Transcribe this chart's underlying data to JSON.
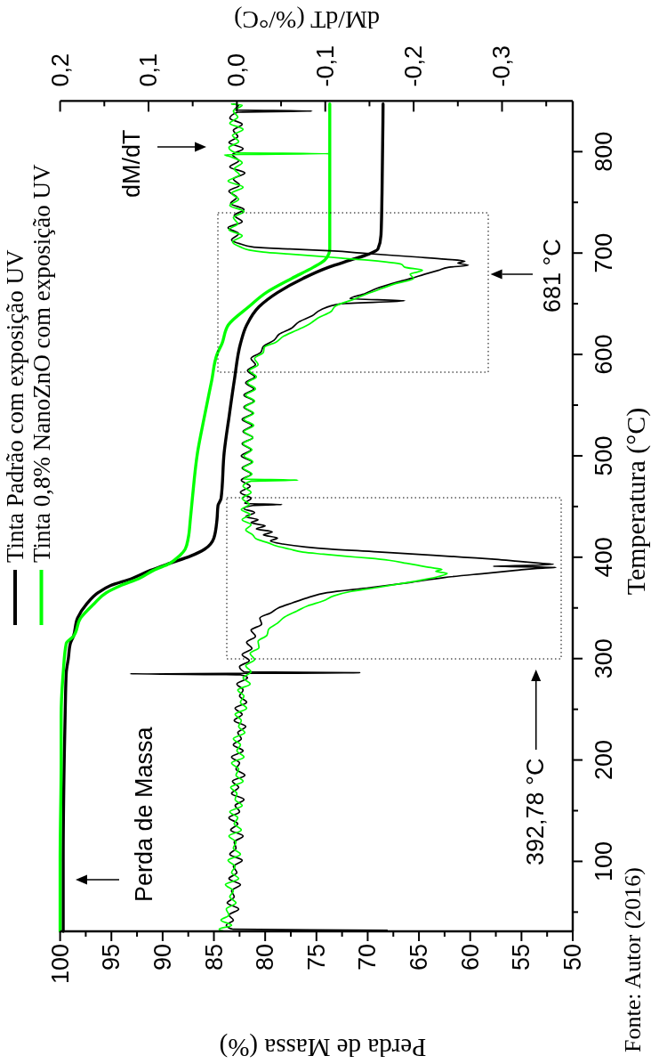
{
  "chart_data": {
    "type": "line",
    "xlabel": "Perda de Massa (%)",
    "x2label": "dM/dT (%/°C)",
    "ylabel": "Temperatura (°C)",
    "annotations": [
      "Perda de Massa",
      "dM/dT",
      "392,78 °C",
      "681 °C",
      "Fonte: Autor (2016)"
    ],
    "xlim": [
      100,
      50
    ],
    "x2lim": [
      0.2,
      -0.38
    ],
    "ylim": [
      31,
      850
    ],
    "xticks": [
      100,
      {
        "value": 97.5,
        "label": null
      },
      95,
      {
        "value": 92.5,
        "label": null
      },
      90,
      {
        "value": 87.5,
        "label": null
      },
      85,
      {
        "value": 82.5,
        "label": null
      },
      80,
      {
        "value": 77.5,
        "label": null
      },
      75,
      {
        "value": 72.5,
        "label": null
      },
      70,
      {
        "value": 67.5,
        "label": null
      },
      65,
      {
        "value": 62.5,
        "label": null
      },
      60,
      {
        "value": 57.5,
        "label": null
      },
      55,
      {
        "value": 52.5,
        "label": null
      },
      50
    ],
    "x2ticks": [
      {
        "value": 0.2,
        "label": "0,2"
      },
      {
        "value": 0.15,
        "label": null
      },
      {
        "value": 0.1,
        "label": "0,1"
      },
      {
        "value": 0.05,
        "label": null
      },
      {
        "value": 0,
        "label": "0,0"
      },
      {
        "value": -0.05,
        "label": null
      },
      {
        "value": -0.1,
        "label": "-0,1"
      },
      {
        "value": -0.15,
        "label": null
      },
      {
        "value": -0.2,
        "label": "-0,2"
      },
      {
        "value": -0.25,
        "label": null
      },
      {
        "value": -0.3,
        "label": "-0,3"
      },
      {
        "value": -0.35,
        "label": null
      }
    ],
    "yticks": [
      {
        "value": 50,
        "label": null
      },
      100,
      {
        "value": 150,
        "label": null
      },
      200,
      {
        "value": 250,
        "label": null
      },
      300,
      {
        "value": 350,
        "label": null
      },
      400,
      {
        "value": 450,
        "label": null
      },
      500,
      {
        "value": 550,
        "label": null
      },
      600,
      {
        "value": 650,
        "label": null
      },
      700,
      {
        "value": 750,
        "label": null
      },
      800
    ],
    "legend": "left",
    "series": [
      {
        "name": "Tinta Padrão com exposição UV",
        "color": "#000000",
        "values": [
          31,
          100,
          200,
          250,
          286,
          300,
          315,
          322,
          340,
          354,
          365,
          372,
          379,
          387,
          394,
          401,
          408,
          419,
          437,
          451,
          458,
          503,
          540,
          575,
          611,
          629,
          647,
          661,
          675,
          686,
          693,
          699,
          704,
          718,
          760,
          847
        ],
        "x": [
          99.7,
          99.7,
          99.6,
          99.5,
          99.4,
          99.2,
          99.0,
          98.7,
          98.3,
          97.4,
          96.3,
          95.1,
          93.0,
          91.2,
          89.3,
          87.3,
          85.9,
          85.0,
          84.7,
          84.6,
          84.3,
          84.0,
          83.5,
          83.0,
          82.4,
          81.8,
          80.6,
          78.8,
          76.3,
          73.8,
          71.7,
          69.9,
          69.0,
          68.7,
          68.6,
          68.5
        ]
      },
      {
        "name": "Tinta 0,8% NanoZnO com exposição UV",
        "color": "#00ff00",
        "values": [
          31,
          100,
          200,
          243,
          286,
          315,
          322,
          340,
          354,
          365,
          372,
          379,
          387,
          394,
          401,
          408,
          419,
          437,
          458,
          503,
          540,
          575,
          600,
          611,
          629,
          647,
          661,
          675,
          686,
          693,
          699,
          704,
          760,
          847
        ],
        "x": [
          100.0,
          100.0,
          99.9,
          99.9,
          99.7,
          99.4,
          98.7,
          98.0,
          96.7,
          95.5,
          94.1,
          92.3,
          90.9,
          89.3,
          88.4,
          87.8,
          87.5,
          87.3,
          87.1,
          86.6,
          85.9,
          85.2,
          84.7,
          84.2,
          83.6,
          81.6,
          79.9,
          77.4,
          75.3,
          74.2,
          73.8,
          73.7,
          73.7,
          73.7
        ]
      },
      {
        "color": "#000000",
        "axis": "x2",
        "values": [
          31,
          32,
          33,
          37,
          42,
          47,
          53,
          59,
          65,
          71,
          77,
          83,
          89,
          95,
          101,
          107,
          113,
          119,
          125,
          131,
          137,
          143,
          149,
          155,
          161,
          167,
          173,
          179,
          185,
          191,
          197,
          203,
          209,
          215,
          221,
          227,
          233,
          239,
          245,
          251,
          257,
          263,
          269,
          275,
          281,
          284,
          285,
          286,
          287,
          292,
          298,
          304,
          310,
          316,
          322,
          328,
          334,
          340,
          345,
          350,
          355,
          360,
          365,
          370,
          375,
          380,
          384,
          387,
          389,
          390,
          391,
          392,
          393,
          394,
          396,
          398,
          400,
          402,
          405,
          408,
          410,
          413,
          416,
          419,
          422,
          425,
          428,
          431,
          434,
          437,
          440,
          444,
          448,
          451,
          452,
          453,
          458,
          464,
          470,
          476,
          482,
          488,
          494,
          500,
          506,
          512,
          518,
          524,
          530,
          536,
          542,
          548,
          554,
          560,
          566,
          572,
          578,
          584,
          590,
          596,
          602,
          608,
          614,
          620,
          626,
          632,
          638,
          644,
          650,
          653,
          655,
          660,
          665,
          670,
          675,
          679,
          683,
          686,
          688,
          690,
          692,
          694,
          696,
          698,
          700,
          702,
          704,
          706,
          709,
          713,
          719,
          725,
          731,
          737,
          743,
          749,
          755,
          761,
          767,
          773,
          779,
          785,
          791,
          797,
          803,
          809,
          815,
          821,
          827,
          833,
          839,
          840,
          841,
          846,
          847
        ],
        "x": [
          0.006,
          -0.17,
          0.004,
          0.012,
          0.004,
          0.009,
          -0.002,
          0.011,
          0.003,
          0.006,
          -0.004,
          0.009,
          0.0,
          0.004,
          -0.006,
          0.008,
          0.001,
          0.003,
          -0.007,
          0.007,
          -0.001,
          0.009,
          -0.003,
          0.002,
          -0.008,
          0.006,
          -0.002,
          0.005,
          -0.009,
          0.001,
          -0.003,
          0.006,
          -0.007,
          0.004,
          -0.005,
          -0.001,
          -0.01,
          0.003,
          -0.006,
          0.002,
          -0.011,
          -0.003,
          -0.007,
          0.0,
          -0.012,
          -0.004,
          0.121,
          -0.139,
          -0.008,
          -0.003,
          -0.014,
          -0.006,
          -0.017,
          -0.011,
          -0.021,
          -0.016,
          -0.028,
          -0.026,
          -0.038,
          -0.047,
          -0.063,
          -0.08,
          -0.102,
          -0.15,
          -0.195,
          -0.235,
          -0.28,
          -0.315,
          -0.34,
          -0.361,
          -0.29,
          -0.335,
          -0.358,
          -0.344,
          -0.318,
          -0.292,
          -0.256,
          -0.222,
          -0.164,
          -0.105,
          -0.078,
          -0.052,
          -0.038,
          -0.046,
          -0.03,
          -0.04,
          -0.022,
          -0.032,
          -0.016,
          -0.024,
          -0.01,
          -0.02,
          -0.008,
          -0.018,
          -0.051,
          -0.009,
          -0.016,
          -0.004,
          -0.015,
          -0.005,
          -0.016,
          -0.006,
          -0.017,
          -0.005,
          -0.016,
          -0.006,
          -0.018,
          -0.007,
          -0.017,
          -0.006,
          -0.018,
          -0.008,
          -0.019,
          -0.008,
          -0.019,
          -0.01,
          -0.02,
          -0.012,
          -0.021,
          -0.016,
          -0.027,
          -0.03,
          -0.042,
          -0.048,
          -0.062,
          -0.07,
          -0.085,
          -0.095,
          -0.118,
          -0.19,
          -0.128,
          -0.145,
          -0.158,
          -0.176,
          -0.197,
          -0.212,
          -0.228,
          -0.24,
          -0.262,
          -0.25,
          -0.258,
          -0.236,
          -0.205,
          -0.172,
          -0.14,
          -0.11,
          -0.06,
          -0.018,
          -0.004,
          0.006,
          -0.002,
          0.01,
          -0.006,
          0.003,
          -0.008,
          0.007,
          0.0,
          0.009,
          -0.003,
          0.004,
          -0.009,
          0.008,
          -0.002,
          0.005,
          -0.007,
          0.009,
          -0.001,
          0.004,
          -0.006,
          0.008,
          -0.001,
          -0.085,
          0.003,
          -0.002,
          0.004
        ]
      },
      {
        "color": "#00ff00",
        "axis": "x2",
        "values": [
          31,
          33,
          37,
          42,
          47,
          53,
          59,
          65,
          71,
          77,
          83,
          89,
          95,
          101,
          107,
          113,
          119,
          125,
          131,
          137,
          143,
          149,
          155,
          161,
          167,
          173,
          179,
          185,
          191,
          197,
          203,
          209,
          215,
          221,
          227,
          233,
          239,
          245,
          251,
          257,
          263,
          269,
          275,
          281,
          287,
          293,
          299,
          305,
          311,
          317,
          323,
          329,
          335,
          341,
          347,
          352,
          357,
          362,
          366,
          370,
          374,
          378,
          381,
          384,
          386,
          388,
          390,
          392,
          394,
          397,
          399,
          401,
          403,
          405,
          408,
          411,
          414,
          418,
          422,
          427,
          432,
          437,
          442,
          447,
          452,
          458,
          464,
          470,
          475,
          476,
          477,
          482,
          488,
          494,
          500,
          506,
          512,
          518,
          524,
          530,
          536,
          542,
          548,
          554,
          560,
          566,
          572,
          578,
          584,
          590,
          596,
          602,
          607,
          612,
          618,
          624,
          630,
          636,
          642,
          648,
          654,
          660,
          665,
          670,
          675,
          679,
          683,
          686,
          689,
          691,
          693,
          695,
          697,
          699,
          701,
          703,
          706,
          711,
          717,
          723,
          729,
          735,
          741,
          747,
          753,
          759,
          765,
          771,
          777,
          783,
          789,
          795,
          797,
          798,
          799,
          804,
          810,
          816,
          822,
          828,
          834,
          840,
          846,
          847
        ],
        "x": [
          0.014,
          0.02,
          0.006,
          0.018,
          0.009,
          0.012,
          0.001,
          0.008,
          0.004,
          0.013,
          -0.002,
          0.006,
          0.002,
          0.01,
          -0.004,
          0.004,
          0.001,
          0.009,
          -0.005,
          0.003,
          -0.001,
          0.008,
          -0.006,
          0.002,
          0.0,
          0.007,
          -0.007,
          0.001,
          -0.002,
          0.006,
          -0.008,
          0.0,
          -0.004,
          0.004,
          -0.009,
          -0.002,
          -0.005,
          0.002,
          -0.011,
          -0.004,
          -0.008,
          -0.001,
          -0.015,
          -0.007,
          -0.016,
          -0.01,
          -0.02,
          -0.015,
          -0.025,
          -0.024,
          -0.034,
          -0.036,
          -0.046,
          -0.054,
          -0.068,
          -0.08,
          -0.098,
          -0.11,
          -0.128,
          -0.158,
          -0.186,
          -0.212,
          -0.228,
          -0.238,
          -0.225,
          -0.232,
          -0.217,
          -0.205,
          -0.192,
          -0.172,
          -0.15,
          -0.122,
          -0.098,
          -0.075,
          -0.06,
          -0.045,
          -0.036,
          -0.022,
          -0.018,
          -0.01,
          -0.016,
          -0.006,
          -0.015,
          -0.005,
          -0.014,
          -0.006,
          -0.016,
          -0.007,
          -0.016,
          -0.069,
          -0.008,
          -0.017,
          -0.007,
          -0.018,
          -0.008,
          -0.017,
          -0.007,
          -0.018,
          -0.008,
          -0.019,
          -0.008,
          -0.019,
          -0.009,
          -0.02,
          -0.01,
          -0.021,
          -0.012,
          -0.022,
          -0.014,
          -0.024,
          -0.02,
          -0.03,
          -0.031,
          -0.044,
          -0.053,
          -0.068,
          -0.082,
          -0.092,
          -0.106,
          -0.112,
          -0.131,
          -0.148,
          -0.164,
          -0.18,
          -0.2,
          -0.196,
          -0.21,
          -0.19,
          -0.186,
          -0.17,
          -0.148,
          -0.118,
          -0.09,
          -0.06,
          -0.03,
          -0.014,
          -0.004,
          0.005,
          -0.006,
          0.009,
          -0.001,
          0.004,
          -0.008,
          0.008,
          -0.002,
          0.006,
          -0.007,
          0.01,
          -0.003,
          0.003,
          -0.006,
          0.007,
          0.014,
          -0.105,
          0.002,
          0.009,
          -0.002,
          0.005,
          -0.007,
          0.008,
          -0.001,
          0.004,
          -0.006,
          0.006
        ]
      }
    ]
  }
}
